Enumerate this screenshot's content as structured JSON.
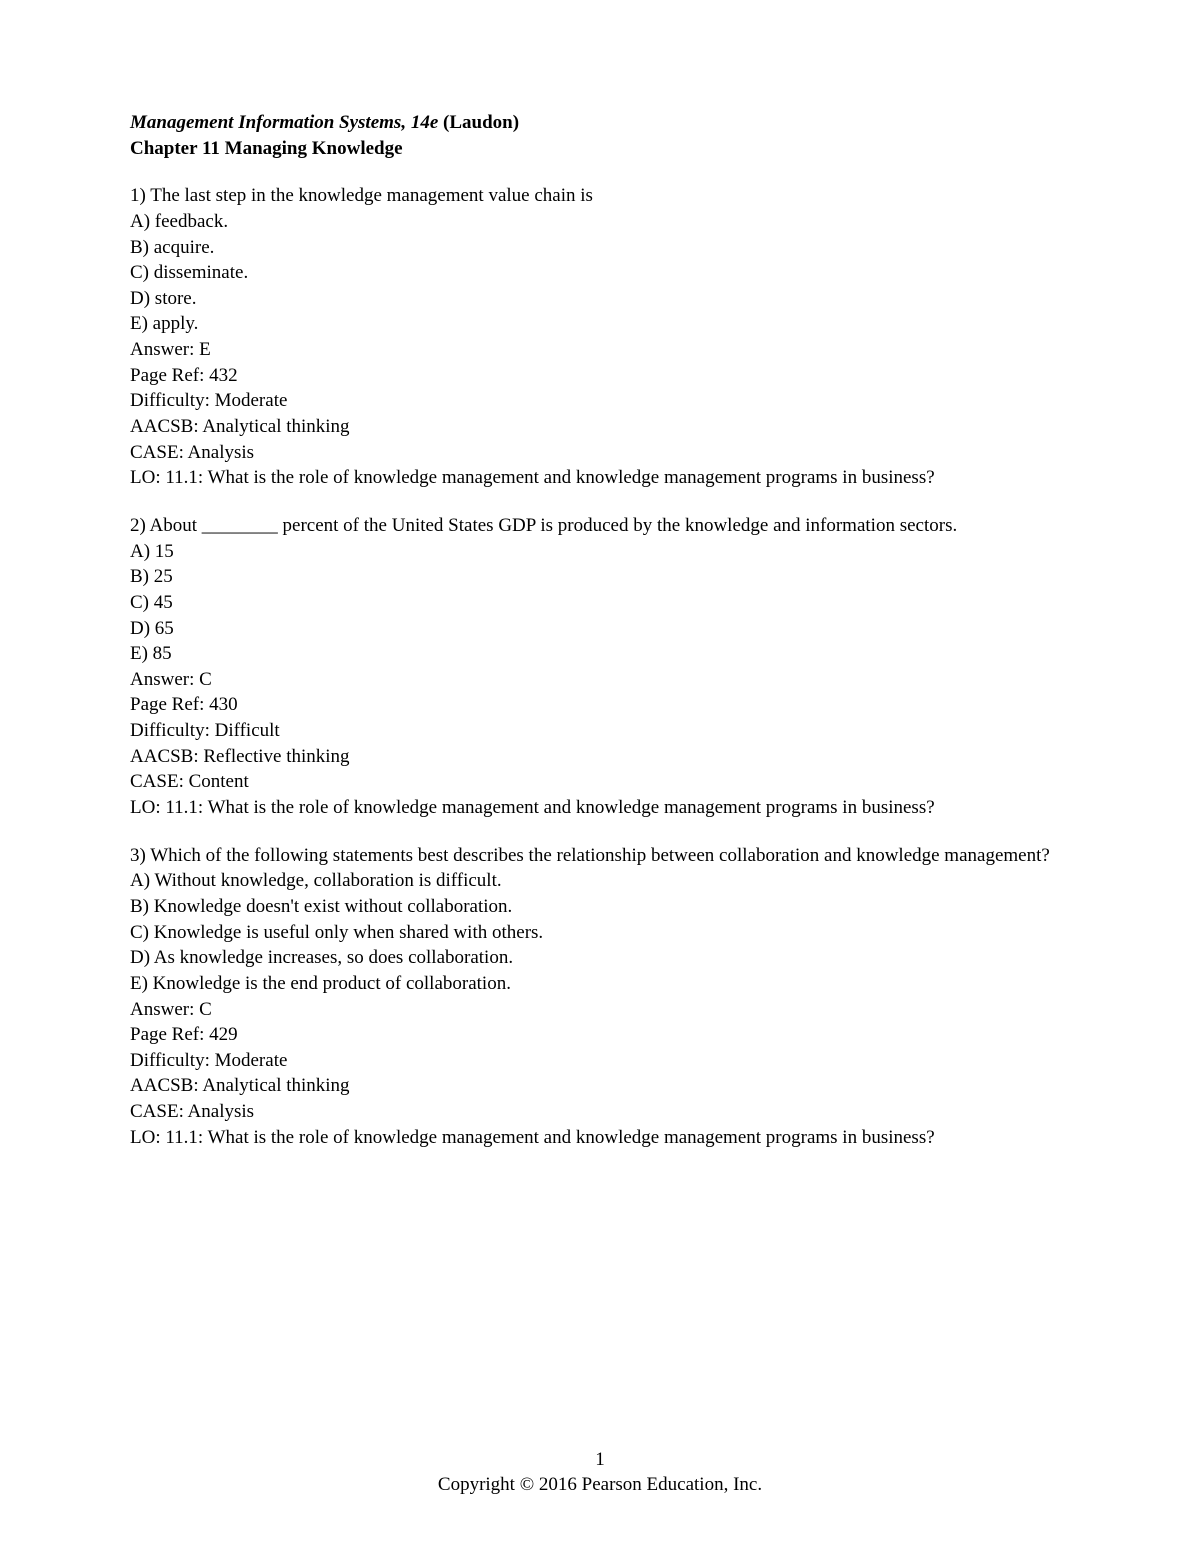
{
  "header": {
    "title_italic": "Management Information Systems, 14e",
    "title_author": " (Laudon)",
    "chapter": "Chapter 11   Managing Knowledge"
  },
  "questions": [
    {
      "stem": "1) The last step in the knowledge management value chain is",
      "options": [
        "A) feedback.",
        "B) acquire.",
        "C) disseminate.",
        "D) store.",
        "E) apply."
      ],
      "answer": "Answer:  E",
      "pageref": "Page Ref: 432",
      "difficulty": "Difficulty:  Moderate",
      "aacsb": "AACSB:  Analytical thinking",
      "case": "CASE:  Analysis",
      "lo": "LO:  11.1: What is the role of knowledge management and knowledge management programs in business?"
    },
    {
      "stem": "2) About ________ percent of the United States GDP is produced by the knowledge and information sectors.",
      "options": [
        "A) 15",
        "B) 25",
        "C) 45",
        "D) 65",
        "E) 85"
      ],
      "answer": "Answer:  C",
      "pageref": "Page Ref: 430",
      "difficulty": "Difficulty:  Difficult",
      "aacsb": "AACSB:  Reflective thinking",
      "case": "CASE:  Content",
      "lo": "LO:  11.1: What is the role of knowledge management and knowledge management programs in business?"
    },
    {
      "stem": "3) Which of the following statements best describes the relationship between collaboration and knowledge management?",
      "options": [
        "A) Without knowledge, collaboration is difficult.",
        "B) Knowledge doesn't exist without collaboration.",
        "C) Knowledge is useful only when shared with others.",
        "D) As knowledge increases, so does collaboration.",
        "E) Knowledge is the end product of collaboration."
      ],
      "answer": "Answer:  C",
      "pageref": "Page Ref: 429",
      "difficulty": "Difficulty:  Moderate",
      "aacsb": "AACSB:  Analytical thinking",
      "case": "CASE:  Analysis",
      "lo": "LO:  11.1: What is the role of knowledge management and knowledge management programs in business?"
    }
  ],
  "footer": {
    "page_number": "1",
    "copyright": "Copyright © 2016 Pearson Education, Inc."
  }
}
